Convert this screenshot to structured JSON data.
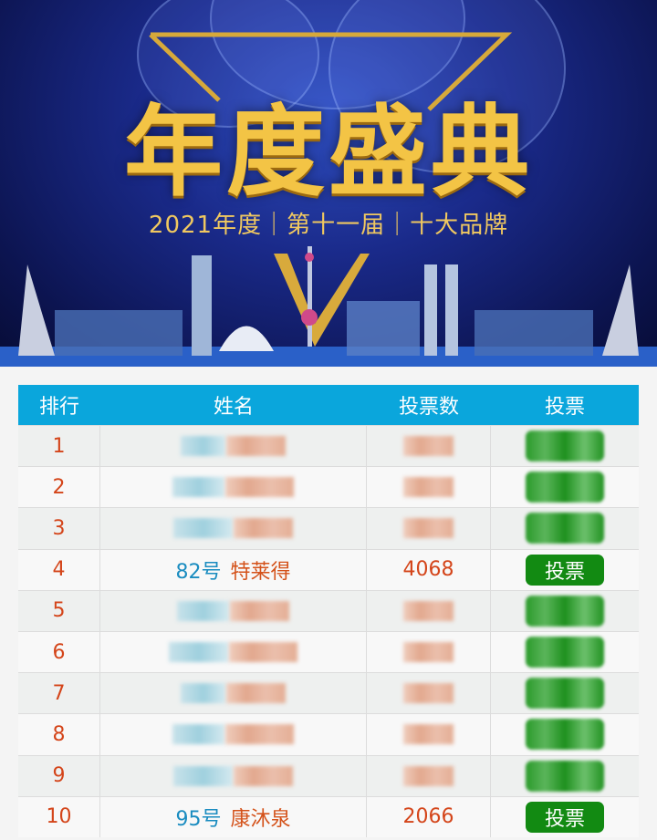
{
  "banner": {
    "title": "年度盛典",
    "subtitle": "2021年度｜第十一届｜十大品牌"
  },
  "table": {
    "headers": [
      "排行",
      "姓名",
      "投票数",
      "投票"
    ],
    "vote_button_label": "投票",
    "rows": [
      {
        "rank": "1",
        "blurred": true
      },
      {
        "rank": "2",
        "blurred": true
      },
      {
        "rank": "3",
        "blurred": true
      },
      {
        "rank": "4",
        "blurred": false,
        "number": "82号",
        "name": "特莱得",
        "votes": "4068"
      },
      {
        "rank": "5",
        "blurred": true
      },
      {
        "rank": "6",
        "blurred": true
      },
      {
        "rank": "7",
        "blurred": true
      },
      {
        "rank": "8",
        "blurred": true
      },
      {
        "rank": "9",
        "blurred": true
      },
      {
        "rank": "10",
        "blurred": false,
        "number": "95号",
        "name": "康沐泉",
        "votes": "2066"
      }
    ]
  },
  "colors": {
    "header": "#0aa6dc",
    "button": "#128a12",
    "rank_text": "#d4451a",
    "number_text": "#1a8cc0"
  }
}
